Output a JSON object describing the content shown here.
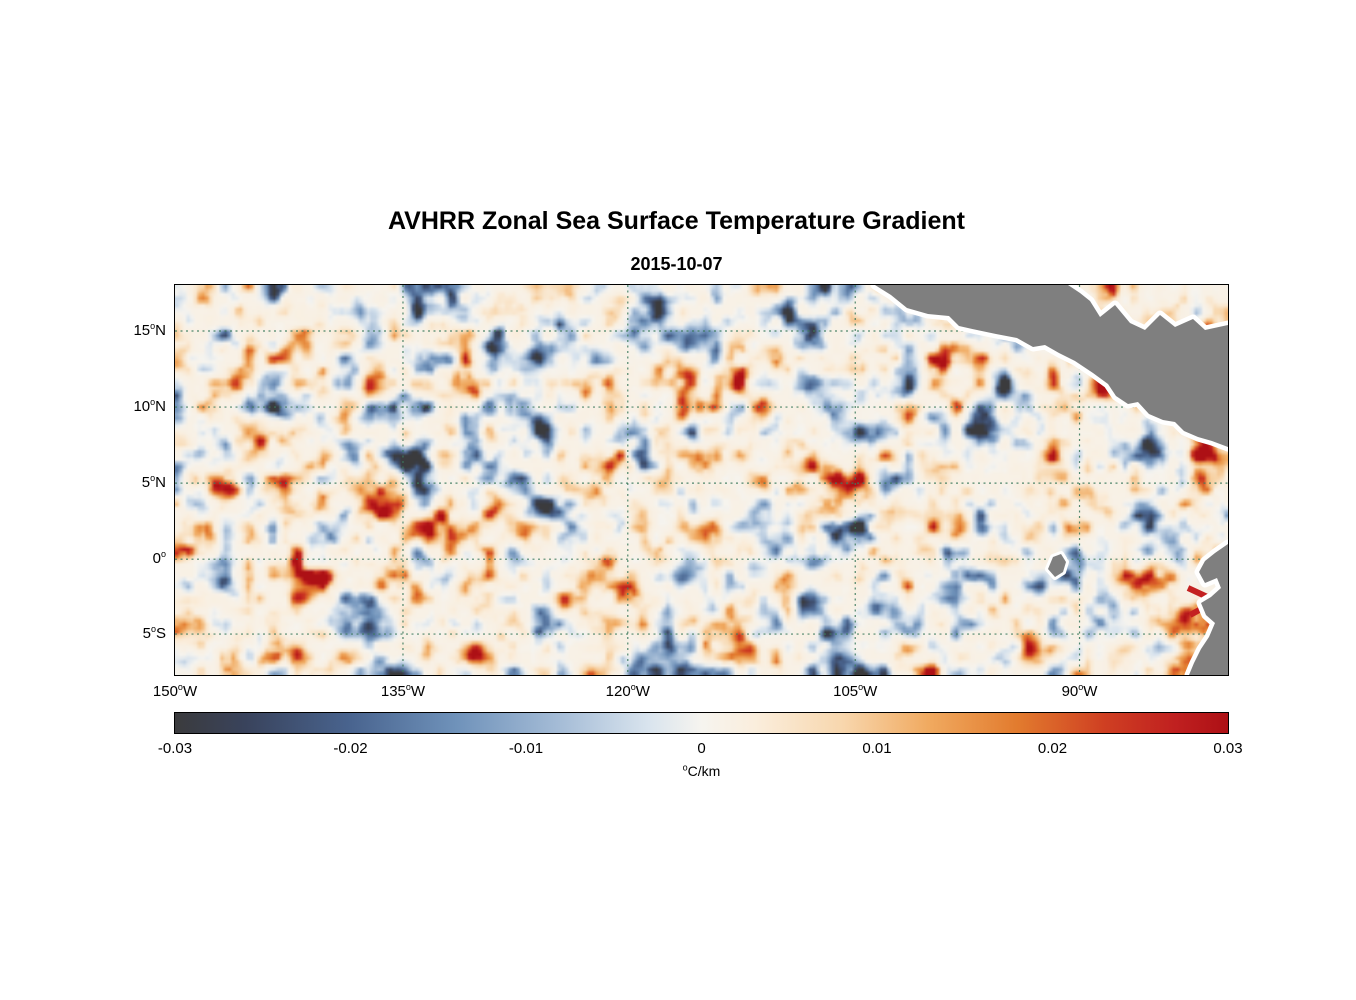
{
  "figure": {
    "title": "AVHRR Zonal Sea Surface Temperature Gradient",
    "subtitle": "2015-10-07"
  },
  "chart_data": {
    "type": "heatmap",
    "title": "AVHRR Zonal Sea Surface Temperature Gradient",
    "date": "2015-10-07",
    "deg_symbol": "o",
    "pattern_description": "Noisy field of small-scale positive (orange/red) and negative (blue) zonal SST gradient patches over the eastern tropical Pacific; gray land (Central America, northwest South America, Galapagos) with white coastal data-gap fringe.",
    "x_axis": {
      "ticks": [
        {
          "num": "150",
          "suffix": "W",
          "pos_pct": 0
        },
        {
          "num": "135",
          "suffix": "W",
          "pos_pct": 21.65
        },
        {
          "num": "120",
          "suffix": "W",
          "pos_pct": 43.0
        },
        {
          "num": "105",
          "suffix": "W",
          "pos_pct": 64.6
        },
        {
          "num": "90",
          "suffix": "W",
          "pos_pct": 85.9
        }
      ]
    },
    "y_axis": {
      "ticks": [
        {
          "num": "15",
          "suffix": "N",
          "pos_pct": 11.8
        },
        {
          "num": "10",
          "suffix": "N",
          "pos_pct": 31.3
        },
        {
          "num": "5",
          "suffix": "N",
          "pos_pct": 50.8
        },
        {
          "num": "0",
          "suffix": "",
          "pos_pct": 70.3
        },
        {
          "num": "5",
          "suffix": "S",
          "pos_pct": 89.5
        }
      ]
    },
    "colorbar": {
      "min": -0.03,
      "max": 0.03,
      "tick_labels": [
        "-0.03",
        "-0.02",
        "-0.01",
        "0",
        "0.01",
        "0.02",
        "0.03"
      ],
      "unit": "C/km"
    },
    "colormap": [
      {
        "value": -0.03,
        "color": "#3b3b3d"
      },
      {
        "value": -0.026,
        "color": "#39435c"
      },
      {
        "value": -0.02,
        "color": "#49648f"
      },
      {
        "value": -0.014,
        "color": "#6f92ba"
      },
      {
        "value": -0.008,
        "color": "#a6bdd7"
      },
      {
        "value": -0.003,
        "color": "#d9e4ee"
      },
      {
        "value": 0.0,
        "color": "#f6f4ef"
      },
      {
        "value": 0.003,
        "color": "#faeedd"
      },
      {
        "value": 0.008,
        "color": "#f8d7ae"
      },
      {
        "value": 0.013,
        "color": "#f0a95f"
      },
      {
        "value": 0.018,
        "color": "#e27b2e"
      },
      {
        "value": 0.023,
        "color": "#cf3f22"
      },
      {
        "value": 0.027,
        "color": "#c02020"
      },
      {
        "value": 0.03,
        "color": "#ad1015"
      }
    ],
    "land_color": "#7f7f7f",
    "grid_color": "#3c7a5e"
  }
}
